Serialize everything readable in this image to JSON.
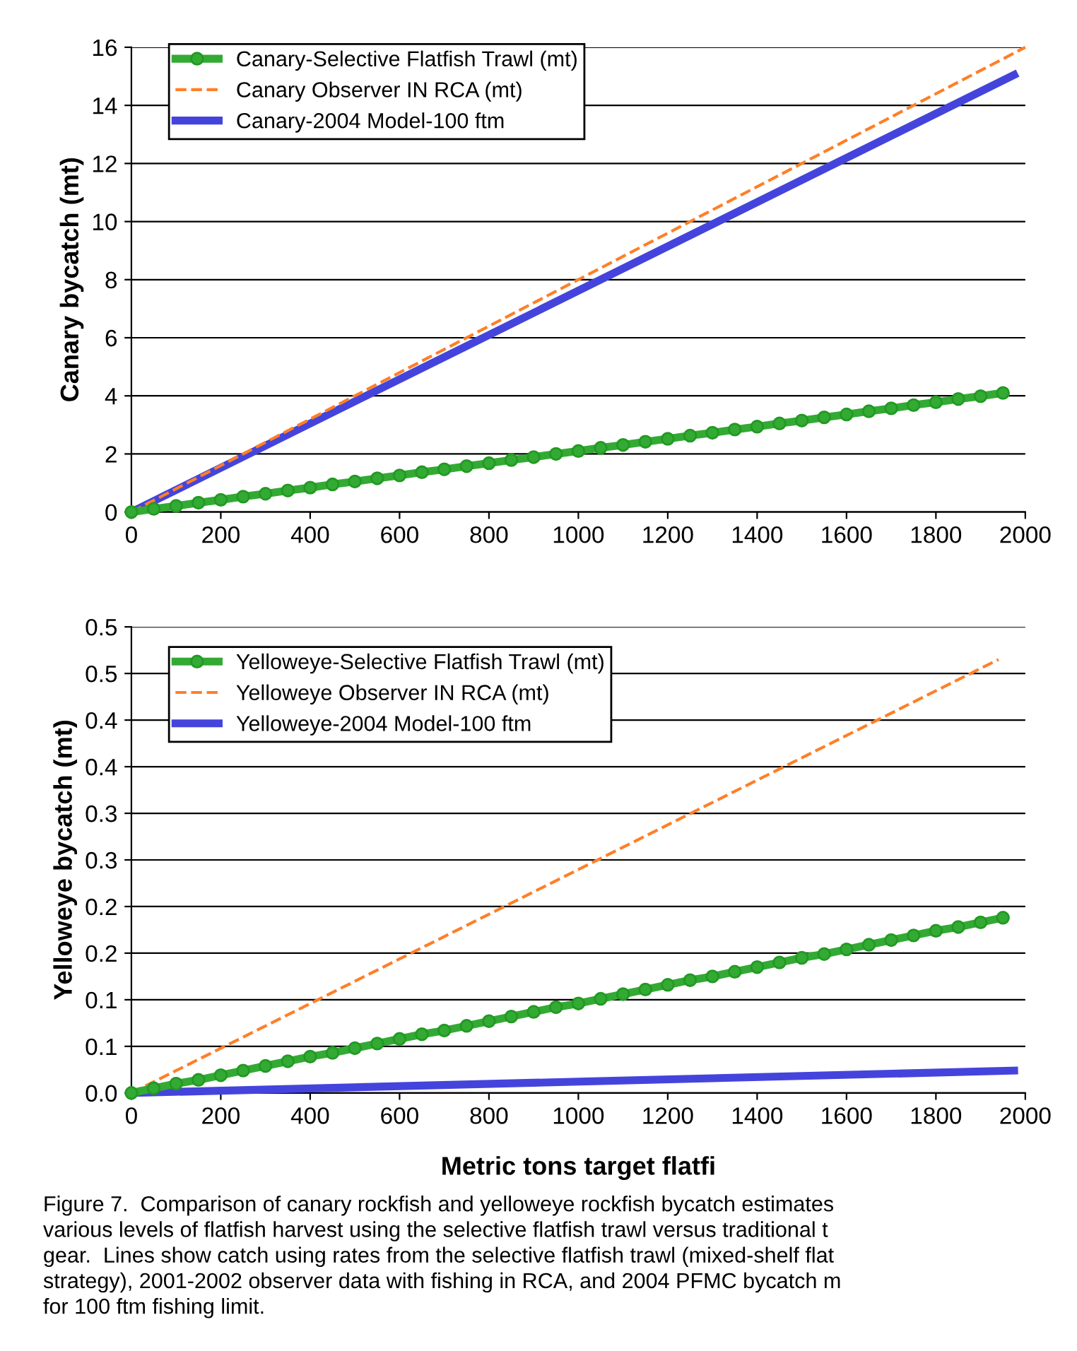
{
  "chart_data": [
    {
      "type": "line",
      "ylabel": "Canary bycatch (mt)",
      "xlim": [
        0,
        2000
      ],
      "xticks": [
        0,
        200,
        400,
        600,
        800,
        1000,
        1200,
        1400,
        1600,
        1800,
        2000
      ],
      "ylim": [
        0,
        16
      ],
      "yticks": [
        0,
        2,
        4,
        6,
        8,
        10,
        12,
        14,
        16
      ],
      "grid": "y",
      "legend": "top left",
      "series": [
        {
          "name": "Canary-Selective Flatfish Trawl (mt)",
          "color": "#33aa33",
          "marker": "circle",
          "line_style": "solid",
          "x": [
            0,
            50,
            100,
            150,
            200,
            250,
            300,
            350,
            400,
            450,
            500,
            550,
            600,
            650,
            700,
            750,
            800,
            850,
            900,
            950,
            1000,
            1050,
            1100,
            1150,
            1200,
            1250,
            1300,
            1350,
            1400,
            1450,
            1500,
            1550,
            1600,
            1650,
            1700,
            1750,
            1800,
            1850,
            1900,
            1950
          ],
          "values": [
            0,
            0.11,
            0.21,
            0.32,
            0.42,
            0.53,
            0.63,
            0.74,
            0.84,
            0.95,
            1.05,
            1.16,
            1.26,
            1.37,
            1.47,
            1.58,
            1.68,
            1.79,
            1.89,
            2.0,
            2.1,
            2.21,
            2.31,
            2.42,
            2.52,
            2.63,
            2.73,
            2.84,
            2.94,
            3.05,
            3.15,
            3.26,
            3.36,
            3.47,
            3.57,
            3.68,
            3.78,
            3.89,
            3.99,
            4.1
          ]
        },
        {
          "name": "Canary Observer IN RCA (mt)",
          "color": "#ff7f27",
          "marker": "none",
          "line_style": "dashed",
          "x": [
            0,
            2000
          ],
          "values": [
            0,
            16
          ]
        },
        {
          "name": "Canary-2004 Model-100 ftm",
          "color": "#4444dd",
          "marker": "none",
          "line_style": "solid",
          "x": [
            0,
            1975
          ],
          "values": [
            0,
            15.05
          ]
        }
      ]
    },
    {
      "type": "line",
      "xlabel": "Metric tons target flatfi",
      "ylabel": "Yelloweye bycatch (mt)",
      "xlim": [
        0,
        2000
      ],
      "xticks": [
        0,
        200,
        400,
        600,
        800,
        1000,
        1200,
        1400,
        1600,
        1800,
        2000
      ],
      "ylim": [
        0,
        0.5
      ],
      "yticks": [
        {
          "value": 0,
          "label": "0.0"
        },
        {
          "value": 0.05,
          "label": "0.1"
        },
        {
          "value": 0.1,
          "label": "0.1"
        },
        {
          "value": 0.15,
          "label": "0.2"
        },
        {
          "value": 0.2,
          "label": "0.2"
        },
        {
          "value": 0.25,
          "label": "0.3"
        },
        {
          "value": 0.3,
          "label": "0.3"
        },
        {
          "value": 0.35,
          "label": "0.4"
        },
        {
          "value": 0.4,
          "label": "0.4"
        },
        {
          "value": 0.45,
          "label": "0.5"
        },
        {
          "value": 0.5,
          "label": "0.5"
        }
      ],
      "grid": "y",
      "legend": "top left",
      "annotations": [
        "Figure 7.  Comparison of canary rockfish and yelloweye rockfish bycatch estimates\nvarious levels of flatfish harvest using the selective flatfish trawl versus traditional t\ngear.  Lines show catch using rates from the selective flatfish trawl (mixed-shelf flat\nstrategy), 2001-2002 observer data with fishing in RCA, and 2004 PFMC bycatch m\nfor 100 ftm fishing limit."
      ],
      "series": [
        {
          "name": "Yelloweye-Selective Flatfish Trawl (mt)",
          "color": "#33aa33",
          "marker": "circle",
          "line_style": "solid",
          "x": [
            0,
            50,
            100,
            150,
            200,
            250,
            300,
            350,
            400,
            450,
            500,
            550,
            600,
            650,
            700,
            750,
            800,
            850,
            900,
            950,
            1000,
            1050,
            1100,
            1150,
            1200,
            1250,
            1300,
            1350,
            1400,
            1450,
            1500,
            1550,
            1600,
            1650,
            1700,
            1750,
            1800,
            1850,
            1900,
            1950
          ],
          "values": [
            0,
            0.005,
            0.01,
            0.014,
            0.019,
            0.024,
            0.029,
            0.034,
            0.039,
            0.043,
            0.048,
            0.053,
            0.058,
            0.063,
            0.067,
            0.072,
            0.077,
            0.082,
            0.087,
            0.092,
            0.096,
            0.101,
            0.106,
            0.111,
            0.116,
            0.121,
            0.125,
            0.13,
            0.135,
            0.14,
            0.145,
            0.149,
            0.154,
            0.159,
            0.164,
            0.169,
            0.174,
            0.178,
            0.183,
            0.188
          ]
        },
        {
          "name": "Yelloweye Observer IN RCA (mt)",
          "color": "#ff7f27",
          "marker": "none",
          "line_style": "dashed",
          "x": [
            0,
            1940
          ],
          "values": [
            0,
            0.465
          ]
        },
        {
          "name": "Yelloweye-2004 Model-100 ftm",
          "color": "#4444dd",
          "marker": "none",
          "line_style": "solid",
          "x": [
            0,
            1975
          ],
          "values": [
            0,
            0.024
          ]
        }
      ]
    }
  ]
}
